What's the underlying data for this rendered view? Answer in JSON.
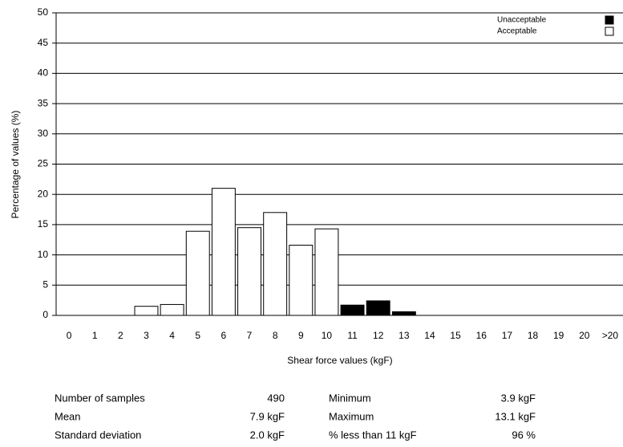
{
  "chart_data": {
    "type": "bar",
    "categories": [
      "0",
      "1",
      "2",
      "3",
      "4",
      "5",
      "6",
      "7",
      "8",
      "9",
      "10",
      "11",
      "12",
      "13",
      "14",
      "15",
      "16",
      "17",
      "18",
      "19",
      "20",
      ">20"
    ],
    "series": [
      {
        "name": "Unacceptable",
        "color": "#000000",
        "values": [
          null,
          null,
          null,
          null,
          null,
          null,
          null,
          null,
          null,
          null,
          null,
          1.7,
          2.4,
          0.6,
          null,
          null,
          null,
          null,
          null,
          null,
          null,
          null
        ]
      },
      {
        "name": "Acceptable",
        "color": "#ffffff",
        "values": [
          null,
          null,
          null,
          1.5,
          1.8,
          13.9,
          21,
          14.5,
          17,
          11.6,
          14.3,
          null,
          null,
          null,
          null,
          null,
          null,
          null,
          null,
          null,
          null,
          null
        ]
      }
    ],
    "ylim": [
      0,
      50
    ],
    "yticks": [
      0,
      5,
      10,
      15,
      20,
      25,
      30,
      35,
      40,
      45,
      50
    ],
    "grid": true,
    "y_label": "Percentage of values (%)",
    "x_label": "Shear force values (kgF)",
    "legend": "top-right"
  },
  "stats": {
    "rows": [
      [
        "Number of samples",
        "490",
        "Minimum",
        "3.9 kgF"
      ],
      [
        "Mean",
        "7.9 kgF",
        "Maximum",
        "13.1 kgF"
      ],
      [
        "Standard deviation",
        "2.0 kgF",
        "% less than 11 kgF",
        "96 %"
      ]
    ]
  }
}
